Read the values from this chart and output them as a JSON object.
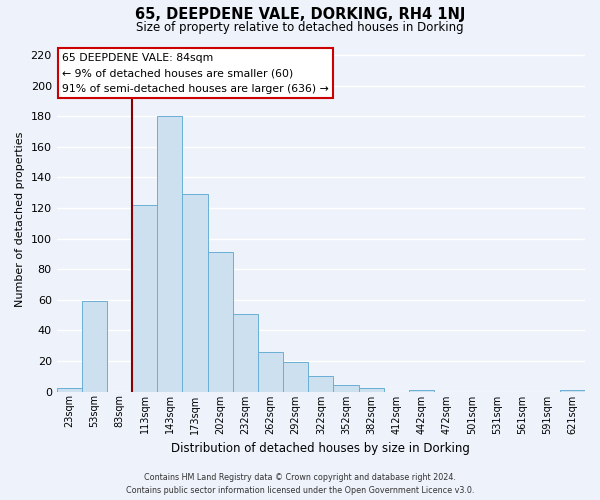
{
  "title": "65, DEEPDENE VALE, DORKING, RH4 1NJ",
  "subtitle": "Size of property relative to detached houses in Dorking",
  "xlabel": "Distribution of detached houses by size in Dorking",
  "ylabel": "Number of detached properties",
  "bar_color": "#cce0f0",
  "bar_edge_color": "#6aafd6",
  "background_color": "#eef2fa",
  "grid_color": "#ffffff",
  "categories": [
    "23sqm",
    "53sqm",
    "83sqm",
    "113sqm",
    "143sqm",
    "173sqm",
    "202sqm",
    "232sqm",
    "262sqm",
    "292sqm",
    "322sqm",
    "352sqm",
    "382sqm",
    "412sqm",
    "442sqm",
    "472sqm",
    "501sqm",
    "531sqm",
    "561sqm",
    "591sqm",
    "621sqm"
  ],
  "values": [
    2,
    59,
    0,
    122,
    180,
    129,
    91,
    51,
    26,
    19,
    10,
    4,
    2,
    0,
    1,
    0,
    0,
    0,
    0,
    0,
    1
  ],
  "ylim": [
    0,
    225
  ],
  "yticks": [
    0,
    20,
    40,
    60,
    80,
    100,
    120,
    140,
    160,
    180,
    200,
    220
  ],
  "property_line_idx": 2,
  "property_line_color": "#880000",
  "annotation_title": "65 DEEPDENE VALE: 84sqm",
  "annotation_line1": "← 9% of detached houses are smaller (60)",
  "annotation_line2": "91% of semi-detached houses are larger (636) →",
  "annotation_box_color": "#ffffff",
  "annotation_box_edge_color": "#cc0000",
  "footer_line1": "Contains HM Land Registry data © Crown copyright and database right 2024.",
  "footer_line2": "Contains public sector information licensed under the Open Government Licence v3.0."
}
